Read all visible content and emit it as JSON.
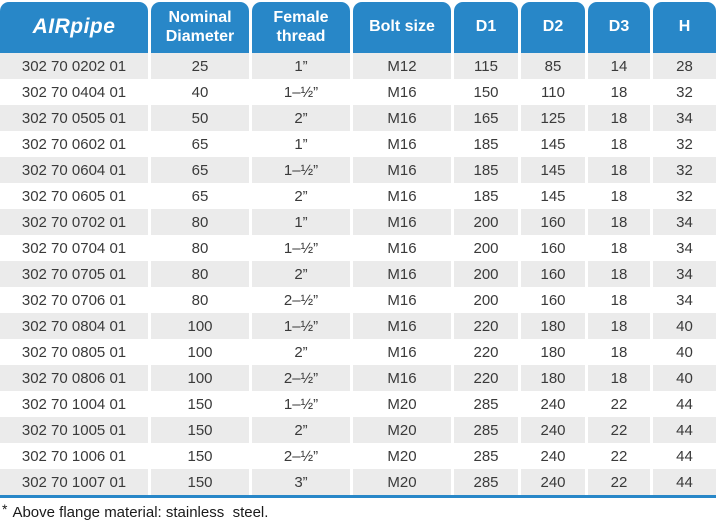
{
  "page": {
    "accent_blue": "#2887C8",
    "row_alt_gray": "#EBEBEB"
  },
  "table": {
    "logo_text": "AIRpipe",
    "column_keys": [
      "code",
      "nominal-diameter",
      "female-thread",
      "bolt-size",
      "d1",
      "d2",
      "d3",
      "h"
    ],
    "headers": [
      "Nominal Diameter",
      "Female thread",
      "Bolt size",
      "D1",
      "D2",
      "D3",
      "H"
    ],
    "rows": [
      [
        "302 70 0202 01",
        "25",
        "1”",
        "M12",
        "115",
        "85",
        "14",
        "28"
      ],
      [
        "302 70 0404 01",
        "40",
        "1–½”",
        "M16",
        "150",
        "110",
        "18",
        "32"
      ],
      [
        "302 70 0505 01",
        "50",
        "2”",
        "M16",
        "165",
        "125",
        "18",
        "34"
      ],
      [
        "302 70 0602 01",
        "65",
        "1”",
        "M16",
        "185",
        "145",
        "18",
        "32"
      ],
      [
        "302 70 0604 01",
        "65",
        "1–½”",
        "M16",
        "185",
        "145",
        "18",
        "32"
      ],
      [
        "302 70 0605 01",
        "65",
        "2”",
        "M16",
        "185",
        "145",
        "18",
        "32"
      ],
      [
        "302 70 0702 01",
        "80",
        "1”",
        "M16",
        "200",
        "160",
        "18",
        "34"
      ],
      [
        "302 70 0704 01",
        "80",
        "1–½”",
        "M16",
        "200",
        "160",
        "18",
        "34"
      ],
      [
        "302 70 0705 01",
        "80",
        "2”",
        "M16",
        "200",
        "160",
        "18",
        "34"
      ],
      [
        "302 70 0706 01",
        "80",
        "2–½”",
        "M16",
        "200",
        "160",
        "18",
        "34"
      ],
      [
        "302 70 0804 01",
        "100",
        "1–½”",
        "M16",
        "220",
        "180",
        "18",
        "40"
      ],
      [
        "302 70 0805 01",
        "100",
        "2”",
        "M16",
        "220",
        "180",
        "18",
        "40"
      ],
      [
        "302 70 0806 01",
        "100",
        "2–½”",
        "M16",
        "220",
        "180",
        "18",
        "40"
      ],
      [
        "302 70 1004 01",
        "150",
        "1–½”",
        "M20",
        "285",
        "240",
        "22",
        "44"
      ],
      [
        "302 70 1005 01",
        "150",
        "2”",
        "M20",
        "285",
        "240",
        "22",
        "44"
      ],
      [
        "302 70 1006 01",
        "150",
        "2–½”",
        "M20",
        "285",
        "240",
        "22",
        "44"
      ],
      [
        "302 70 1007 01",
        "150",
        "3”",
        "M20",
        "285",
        "240",
        "22",
        "44"
      ]
    ]
  },
  "footnote": {
    "marker": "*",
    "text": "Above flange material: stainless  steel."
  }
}
